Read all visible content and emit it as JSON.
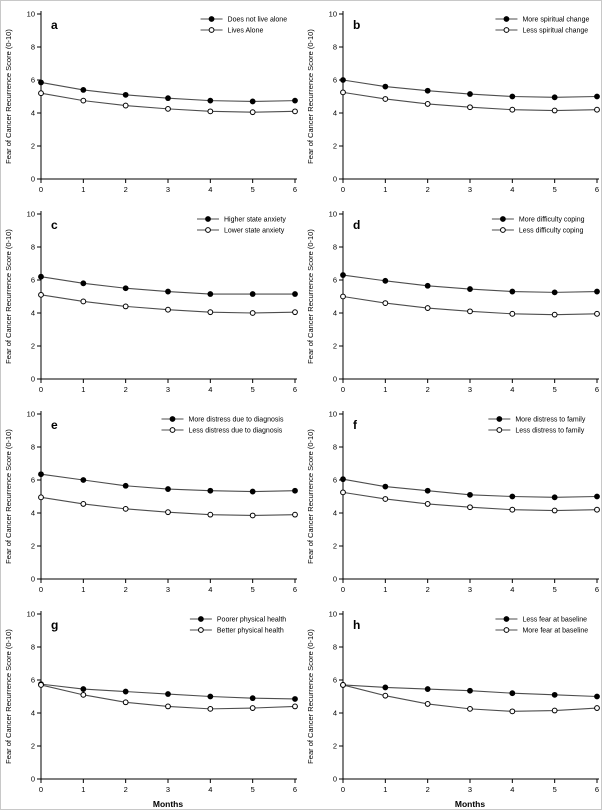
{
  "figure": {
    "ylabel": "Fear of Cancer Recurrence Score (0-10)",
    "xlabel": "Months",
    "axis_color": "#000000",
    "line_color": "#4d4d4d",
    "marker_filled_color": "#000000",
    "marker_open_fill": "#ffffff",
    "text_color": "#000000",
    "border_color": "#c8c8c8"
  },
  "chart_data": [
    {
      "type": "line",
      "panel_letter": "a",
      "x": [
        0,
        1,
        2,
        3,
        4,
        5,
        6
      ],
      "x_tick_labels": [
        "0",
        "1",
        "2",
        "3",
        "4",
        "5",
        "6"
      ],
      "y_ticks": [
        0,
        2,
        4,
        6,
        8,
        10
      ],
      "ylim": [
        0,
        10
      ],
      "xlim": [
        0,
        6
      ],
      "ylabel": "Fear of Cancer Recurrence Score (0-10)",
      "xlabel": "",
      "legend_position": "top-right",
      "series": [
        {
          "name": "Does not live alone",
          "marker": "filled",
          "values": [
            5.85,
            5.4,
            5.1,
            4.9,
            4.75,
            4.7,
            4.75
          ]
        },
        {
          "name": "Lives Alone",
          "marker": "open",
          "values": [
            5.2,
            4.75,
            4.45,
            4.25,
            4.1,
            4.05,
            4.1
          ]
        }
      ]
    },
    {
      "type": "line",
      "panel_letter": "b",
      "x": [
        0,
        1,
        2,
        3,
        4,
        5,
        6
      ],
      "x_tick_labels": [
        "0",
        "1",
        "2",
        "3",
        "4",
        "5",
        "6"
      ],
      "y_ticks": [
        0,
        2,
        4,
        6,
        8,
        10
      ],
      "ylim": [
        0,
        10
      ],
      "xlim": [
        0,
        6
      ],
      "ylabel": "Fear of Cancer Recurrence Score (0-10)",
      "xlabel": "",
      "legend_position": "top-right",
      "series": [
        {
          "name": "More spiritual change",
          "marker": "filled",
          "values": [
            6.0,
            5.6,
            5.35,
            5.15,
            5.0,
            4.95,
            5.0
          ]
        },
        {
          "name": "Less spiritual change",
          "marker": "open",
          "values": [
            5.25,
            4.85,
            4.55,
            4.35,
            4.2,
            4.15,
            4.2
          ]
        }
      ]
    },
    {
      "type": "line",
      "panel_letter": "c",
      "x": [
        0,
        1,
        2,
        3,
        4,
        5,
        6
      ],
      "x_tick_labels": [
        "0",
        "1",
        "2",
        "3",
        "4",
        "5",
        "6"
      ],
      "y_ticks": [
        0,
        2,
        4,
        6,
        8,
        10
      ],
      "ylim": [
        0,
        10
      ],
      "xlim": [
        0,
        6
      ],
      "ylabel": "Fear of Cancer Recurrence Score (0-10)",
      "xlabel": "",
      "legend_position": "top-right",
      "series": [
        {
          "name": "Higher state anxiety",
          "marker": "filled",
          "values": [
            6.2,
            5.8,
            5.5,
            5.3,
            5.15,
            5.15,
            5.15
          ]
        },
        {
          "name": "Lower state anxiety",
          "marker": "open",
          "values": [
            5.1,
            4.7,
            4.4,
            4.2,
            4.05,
            4.0,
            4.05
          ]
        }
      ]
    },
    {
      "type": "line",
      "panel_letter": "d",
      "x": [
        0,
        1,
        2,
        3,
        4,
        5,
        6
      ],
      "x_tick_labels": [
        "0",
        "1",
        "2",
        "3",
        "4",
        "5",
        "6"
      ],
      "y_ticks": [
        0,
        2,
        4,
        6,
        8,
        10
      ],
      "ylim": [
        0,
        10
      ],
      "xlim": [
        0,
        6
      ],
      "ylabel": "Fear of Cancer Recurrence Score (0-10)",
      "xlabel": "",
      "legend_position": "top-right",
      "series": [
        {
          "name": "More difficulty coping",
          "marker": "filled",
          "values": [
            6.3,
            5.95,
            5.65,
            5.45,
            5.3,
            5.25,
            5.3
          ]
        },
        {
          "name": "Less difficulty coping",
          "marker": "open",
          "values": [
            5.0,
            4.6,
            4.3,
            4.1,
            3.95,
            3.9,
            3.95
          ]
        }
      ]
    },
    {
      "type": "line",
      "panel_letter": "e",
      "x": [
        0,
        1,
        2,
        3,
        4,
        5,
        6
      ],
      "x_tick_labels": [
        "0",
        "1",
        "2",
        "3",
        "4",
        "5",
        "6"
      ],
      "y_ticks": [
        0,
        2,
        4,
        6,
        8,
        10
      ],
      "ylim": [
        0,
        10
      ],
      "xlim": [
        0,
        6
      ],
      "ylabel": "Fear of Cancer Recurrence Score (0-10)",
      "xlabel": "",
      "legend_position": "top-right",
      "series": [
        {
          "name": "More distress due to diagnosis",
          "marker": "filled",
          "values": [
            6.35,
            6.0,
            5.65,
            5.45,
            5.35,
            5.3,
            5.35
          ]
        },
        {
          "name": "Less distress due to diagnosis",
          "marker": "open",
          "values": [
            4.95,
            4.55,
            4.25,
            4.05,
            3.9,
            3.85,
            3.9
          ]
        }
      ]
    },
    {
      "type": "line",
      "panel_letter": "f",
      "x": [
        0,
        1,
        2,
        3,
        4,
        5,
        6
      ],
      "x_tick_labels": [
        "0",
        "1",
        "2",
        "3",
        "4",
        "5",
        "6"
      ],
      "y_ticks": [
        0,
        2,
        4,
        6,
        8,
        10
      ],
      "ylim": [
        0,
        10
      ],
      "xlim": [
        0,
        6
      ],
      "ylabel": "Fear of Cancer Recurrence Score (0-10)",
      "xlabel": "",
      "legend_position": "top-right",
      "series": [
        {
          "name": "More distress to family",
          "marker": "filled",
          "values": [
            6.05,
            5.6,
            5.35,
            5.1,
            5.0,
            4.95,
            5.0
          ]
        },
        {
          "name": "Less distress to family",
          "marker": "open",
          "values": [
            5.25,
            4.85,
            4.55,
            4.35,
            4.2,
            4.15,
            4.2
          ]
        }
      ]
    },
    {
      "type": "line",
      "panel_letter": "g",
      "x": [
        0,
        1,
        2,
        3,
        4,
        5,
        6
      ],
      "x_tick_labels": [
        "0",
        "1",
        "2",
        "3",
        "4",
        "5",
        "6"
      ],
      "y_ticks": [
        0,
        2,
        4,
        6,
        8,
        10
      ],
      "ylim": [
        0,
        10
      ],
      "xlim": [
        0,
        6
      ],
      "ylabel": "Fear of Cancer Recurrence Score (0-10)",
      "xlabel": "Months",
      "legend_position": "top-right",
      "series": [
        {
          "name": "Poorer physical health",
          "marker": "filled",
          "values": [
            5.75,
            5.45,
            5.3,
            5.15,
            5.0,
            4.9,
            4.85
          ]
        },
        {
          "name": "Better physical health",
          "marker": "open",
          "values": [
            5.7,
            5.1,
            4.65,
            4.4,
            4.25,
            4.3,
            4.4
          ]
        }
      ]
    },
    {
      "type": "line",
      "panel_letter": "h",
      "x": [
        0,
        1,
        2,
        3,
        4,
        5,
        6
      ],
      "x_tick_labels": [
        "0",
        "1",
        "2",
        "3",
        "4",
        "5",
        "6"
      ],
      "y_ticks": [
        0,
        2,
        4,
        6,
        8,
        10
      ],
      "ylim": [
        0,
        10
      ],
      "xlim": [
        0,
        6
      ],
      "ylabel": "Fear of Cancer Recurrence Score (0-10)",
      "xlabel": "Months",
      "legend_position": "top-right",
      "series": [
        {
          "name": "Less fear at baseline",
          "marker": "filled",
          "values": [
            5.7,
            5.55,
            5.45,
            5.35,
            5.2,
            5.1,
            5.0
          ]
        },
        {
          "name": "More fear at baseline",
          "marker": "open",
          "values": [
            5.7,
            5.05,
            4.55,
            4.25,
            4.1,
            4.15,
            4.3
          ]
        }
      ]
    }
  ]
}
